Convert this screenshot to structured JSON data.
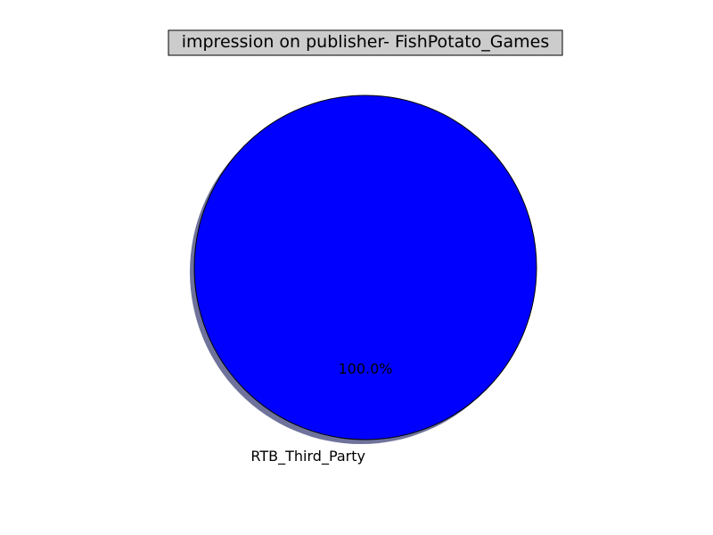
{
  "chart_data": {
    "type": "pie",
    "title": "impression on publisher- FishPotato_Games",
    "labels": [
      "RTB_Third_Party"
    ],
    "values": [
      100.0
    ],
    "percent_labels": [
      "100.0%"
    ],
    "colors": [
      "#0000ff"
    ],
    "title_background": "#cccccc",
    "shadow": true,
    "legend": "none"
  }
}
